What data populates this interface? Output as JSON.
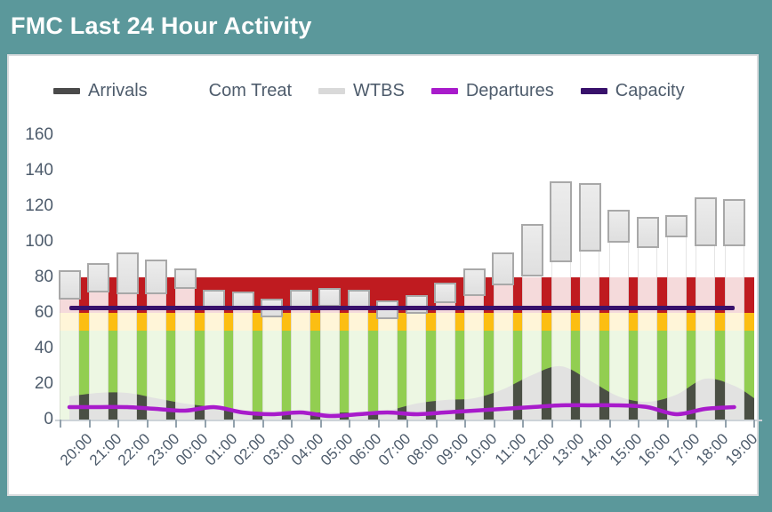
{
  "header": {
    "title": "FMC Last 24 Hour Activity"
  },
  "legend": [
    {
      "label": "Arrivals",
      "color": "#4A4A4A"
    },
    {
      "label": "Com Treat",
      "color": "#FFFFFF"
    },
    {
      "label": "WTBS",
      "color": "#D9D9D9"
    },
    {
      "label": "Departures",
      "color": "#A81BCB"
    },
    {
      "label": "Capacity",
      "color": "#38116B"
    }
  ],
  "chart_data": {
    "type": "combo",
    "title": "FMC Last 24 Hour Activity",
    "categories": [
      "20:00",
      "21:00",
      "22:00",
      "23:00",
      "00:00",
      "01:00",
      "02:00",
      "03:00",
      "04:00",
      "05:00",
      "06:00",
      "07:00",
      "08:00",
      "09:00",
      "10:00",
      "11:00",
      "12:00",
      "13:00",
      "14:00",
      "15:00",
      "16:00",
      "17:00",
      "18:00",
      "19:00"
    ],
    "y_axis": {
      "min": 0,
      "max": 160,
      "step": 20
    },
    "grid": false,
    "legend_position": "top",
    "bands": [
      {
        "name": "green-zone",
        "from": 0,
        "to": 50,
        "color": "#92CE51"
      },
      {
        "name": "amber-zone",
        "from": 50,
        "to": 60,
        "color": "#FCBE12"
      },
      {
        "name": "red-zone",
        "from": 60,
        "to": 80,
        "color": "#BF1B20"
      }
    ],
    "series": [
      {
        "name": "Arrivals",
        "type": "area",
        "color": "#4A4F44",
        "values": [
          13,
          15,
          15,
          12,
          9,
          7,
          5,
          4,
          4,
          4,
          4,
          5,
          9,
          11,
          12,
          17,
          25,
          30,
          22,
          13,
          10,
          14,
          23,
          19
        ]
      },
      {
        "name": "Com Treat",
        "type": "bar",
        "color": "rgba(255,255,255,0.84)",
        "values": [
          68,
          72,
          71,
          71,
          74,
          63,
          62,
          58,
          62,
          64,
          63,
          57,
          60,
          66,
          70,
          76,
          81,
          89,
          95,
          100,
          97,
          103,
          98,
          98
        ]
      },
      {
        "name": "WTBS",
        "type": "bar",
        "stacked_on": "Com Treat",
        "color": "#E6E6E6",
        "border_color": "#A8A8A8",
        "values": [
          16,
          16,
          23,
          19,
          11,
          10,
          10,
          10,
          11,
          10,
          10,
          10,
          10,
          11,
          15,
          18,
          29,
          45,
          38,
          18,
          17,
          12,
          27,
          26
        ]
      },
      {
        "name": "Departures",
        "type": "line",
        "color": "#A81BCB",
        "values": [
          7,
          7,
          7,
          6,
          5,
          7,
          4,
          3,
          4,
          2,
          3,
          4,
          3,
          4,
          5,
          6,
          7,
          8,
          8,
          8,
          7,
          3,
          6,
          7
        ]
      },
      {
        "name": "Capacity",
        "type": "line",
        "color": "#38116B",
        "constant": 63
      }
    ]
  },
  "colors": {
    "page_bg": "#5B989B",
    "card_bg": "#FFFFFF",
    "card_border": "#D9DCDE",
    "axis_text": "#4E5C6C",
    "tick": "#93A2AD",
    "axis_line": "#CDD3D8"
  }
}
